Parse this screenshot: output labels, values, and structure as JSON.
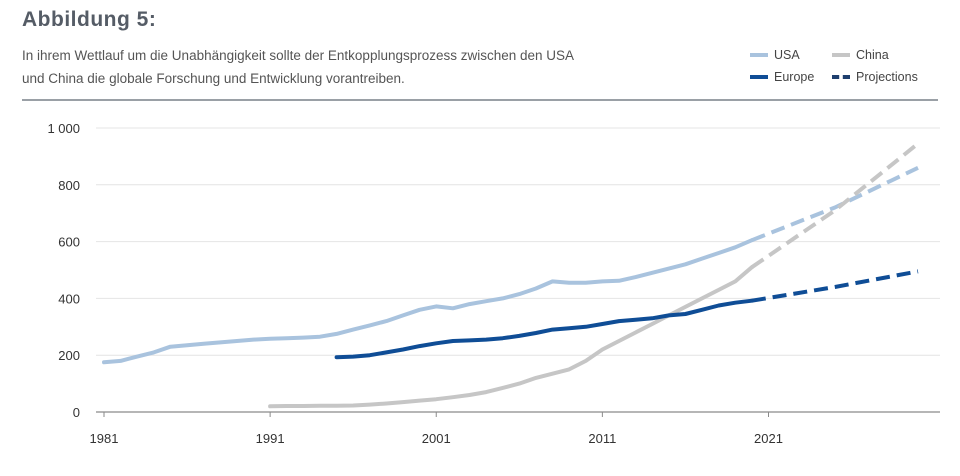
{
  "figure": {
    "label": "Abbildung 5:",
    "subtitle_line1": "In ihrem Wettlauf um die Unabhängigkeit sollte der Entkopplungsprozess zwischen den USA",
    "subtitle_line2": "und China die globale Forschung und Entwicklung vorantreiben."
  },
  "colors": {
    "usa": "#a9c3de",
    "china": "#c6c6c6",
    "europe": "#0f4d96",
    "projection_icon": "#1e3f6e",
    "grid": "#e4e4e4",
    "axis": "#8a8a8a"
  },
  "chart_data": {
    "type": "line",
    "title": "Abbildung 5:",
    "xlabel": "",
    "ylabel": "",
    "xlim": [
      1981,
      2030
    ],
    "ylim": [
      0,
      1000
    ],
    "x_ticks": [
      1981,
      1991,
      2001,
      2011,
      2021
    ],
    "y_ticks": [
      0,
      200,
      400,
      600,
      800,
      1000
    ],
    "y_tick_labels": [
      "0",
      "200",
      "400",
      "600",
      "800",
      "1 000"
    ],
    "grid": true,
    "legend": [
      {
        "name": "USA",
        "style": "solid"
      },
      {
        "name": "China",
        "style": "solid"
      },
      {
        "name": "Europe",
        "style": "solid"
      },
      {
        "name": "Projections",
        "style": "dashed"
      }
    ],
    "series": [
      {
        "name": "USA",
        "x": [
          1981,
          1982,
          1983,
          1984,
          1985,
          1986,
          1987,
          1988,
          1989,
          1990,
          1991,
          1992,
          1993,
          1994,
          1995,
          1996,
          1997,
          1998,
          1999,
          2000,
          2001,
          2002,
          2003,
          2004,
          2005,
          2006,
          2007,
          2008,
          2009,
          2010,
          2011,
          2012,
          2013,
          2014,
          2015,
          2016,
          2017,
          2018,
          2019,
          2020
        ],
        "values": [
          175,
          180,
          195,
          210,
          230,
          235,
          240,
          245,
          250,
          255,
          258,
          260,
          262,
          265,
          275,
          290,
          305,
          320,
          340,
          360,
          372,
          365,
          380,
          390,
          400,
          415,
          435,
          460,
          455,
          455,
          460,
          462,
          475,
          490,
          505,
          520,
          540,
          560,
          580,
          605
        ]
      },
      {
        "name": "China",
        "x": [
          1991,
          1992,
          1993,
          1994,
          1995,
          1996,
          1997,
          1998,
          1999,
          2000,
          2001,
          2002,
          2003,
          2004,
          2005,
          2006,
          2007,
          2008,
          2009,
          2010,
          2011,
          2012,
          2013,
          2014,
          2015,
          2016,
          2017,
          2018,
          2019,
          2020
        ],
        "values": [
          20,
          21,
          21,
          22,
          22,
          23,
          26,
          30,
          35,
          40,
          45,
          52,
          60,
          70,
          85,
          100,
          120,
          135,
          150,
          180,
          220,
          250,
          280,
          310,
          340,
          370,
          400,
          430,
          460,
          510
        ]
      },
      {
        "name": "Europe",
        "x": [
          1995,
          1996,
          1997,
          1998,
          1999,
          2000,
          2001,
          2002,
          2003,
          2004,
          2005,
          2006,
          2007,
          2008,
          2009,
          2010,
          2011,
          2012,
          2013,
          2014,
          2015,
          2016,
          2017,
          2018,
          2019,
          2020
        ],
        "values": [
          193,
          195,
          200,
          210,
          220,
          232,
          242,
          250,
          252,
          255,
          260,
          268,
          278,
          290,
          295,
          300,
          310,
          320,
          325,
          330,
          340,
          345,
          360,
          375,
          385,
          392
        ]
      }
    ],
    "projections": [
      {
        "name": "USA",
        "x": [
          2020,
          2025,
          2030
        ],
        "values": [
          605,
          720,
          860
        ]
      },
      {
        "name": "China",
        "x": [
          2020,
          2025,
          2030
        ],
        "values": [
          510,
          710,
          945
        ]
      },
      {
        "name": "Europe",
        "x": [
          2020,
          2025,
          2030
        ],
        "values": [
          392,
          440,
          495
        ]
      }
    ]
  }
}
